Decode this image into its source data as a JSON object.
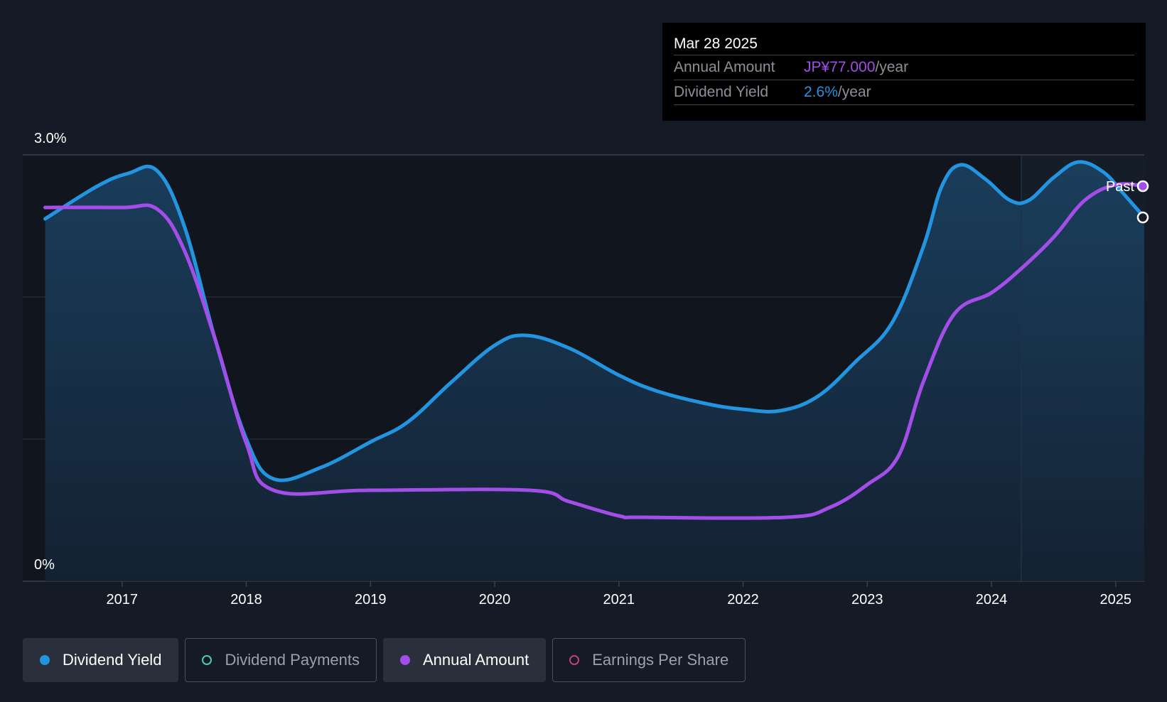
{
  "tooltip": {
    "date": "Mar 28 2025",
    "annual_label": "Annual Amount",
    "annual_value": "JP¥77.000",
    "annual_unit": "/year",
    "yield_label": "Dividend Yield",
    "yield_value": "2.6%",
    "yield_unit": "/year"
  },
  "past_label": "Past",
  "legend": [
    {
      "label": "Dividend Yield",
      "color": "#2394e0",
      "active": true,
      "filled": true
    },
    {
      "label": "Dividend Payments",
      "color": "#4fc9b9",
      "active": false,
      "filled": false
    },
    {
      "label": "Annual Amount",
      "color": "#a34ee8",
      "active": true,
      "filled": true
    },
    {
      "label": "Earnings Per Share",
      "color": "#c2407a",
      "active": false,
      "filled": false
    }
  ],
  "chart_data": {
    "type": "line",
    "x_ticks": [
      "2017",
      "2018",
      "2019",
      "2020",
      "2021",
      "2022",
      "2023",
      "2024",
      "2025"
    ],
    "y_tick_labels": [
      "0%",
      "3.0%"
    ],
    "ylim": [
      0,
      3.0
    ],
    "xlim": [
      2016.2,
      2025.23
    ],
    "grid": true,
    "past_region_start": 2024.24,
    "series": [
      {
        "name": "Dividend Yield",
        "color": "#2394e0",
        "fill": true,
        "points": [
          [
            2016.38,
            2.55
          ],
          [
            2016.8,
            2.78
          ],
          [
            2017.05,
            2.87
          ],
          [
            2017.28,
            2.89
          ],
          [
            2017.5,
            2.5
          ],
          [
            2017.75,
            1.7
          ],
          [
            2018.0,
            1.0
          ],
          [
            2018.22,
            0.72
          ],
          [
            2018.6,
            0.8
          ],
          [
            2019.0,
            0.98
          ],
          [
            2019.3,
            1.12
          ],
          [
            2019.65,
            1.4
          ],
          [
            2020.0,
            1.66
          ],
          [
            2020.25,
            1.73
          ],
          [
            2020.6,
            1.64
          ],
          [
            2021.0,
            1.45
          ],
          [
            2021.3,
            1.34
          ],
          [
            2021.7,
            1.25
          ],
          [
            2022.0,
            1.21
          ],
          [
            2022.3,
            1.2
          ],
          [
            2022.6,
            1.3
          ],
          [
            2022.9,
            1.54
          ],
          [
            2023.2,
            1.82
          ],
          [
            2023.45,
            2.35
          ],
          [
            2023.6,
            2.78
          ],
          [
            2023.75,
            2.93
          ],
          [
            2023.95,
            2.83
          ],
          [
            2024.15,
            2.68
          ],
          [
            2024.3,
            2.68
          ],
          [
            2024.5,
            2.84
          ],
          [
            2024.7,
            2.95
          ],
          [
            2024.9,
            2.88
          ],
          [
            2025.05,
            2.74
          ],
          [
            2025.23,
            2.56
          ]
        ]
      },
      {
        "name": "Annual Amount",
        "color": "#a34ee8",
        "fill": false,
        "points": [
          [
            2016.38,
            2.63
          ],
          [
            2017.0,
            2.63
          ],
          [
            2017.28,
            2.62
          ],
          [
            2017.5,
            2.33
          ],
          [
            2017.75,
            1.7
          ],
          [
            2018.0,
            0.97
          ],
          [
            2018.22,
            0.64
          ],
          [
            2019.0,
            0.64
          ],
          [
            2020.28,
            0.64
          ],
          [
            2020.6,
            0.56
          ],
          [
            2021.0,
            0.46
          ],
          [
            2021.2,
            0.45
          ],
          [
            2022.35,
            0.45
          ],
          [
            2022.7,
            0.52
          ],
          [
            2023.0,
            0.68
          ],
          [
            2023.25,
            0.88
          ],
          [
            2023.45,
            1.4
          ],
          [
            2023.7,
            1.88
          ],
          [
            2024.0,
            2.03
          ],
          [
            2024.24,
            2.2
          ],
          [
            2024.5,
            2.42
          ],
          [
            2024.75,
            2.68
          ],
          [
            2025.0,
            2.79
          ],
          [
            2025.23,
            2.78
          ]
        ]
      }
    ],
    "end_markers": [
      {
        "series": "Annual Amount",
        "x": 2025.23,
        "y": 2.78
      },
      {
        "series": "Dividend Yield",
        "x": 2025.23,
        "y": 2.56
      }
    ]
  }
}
